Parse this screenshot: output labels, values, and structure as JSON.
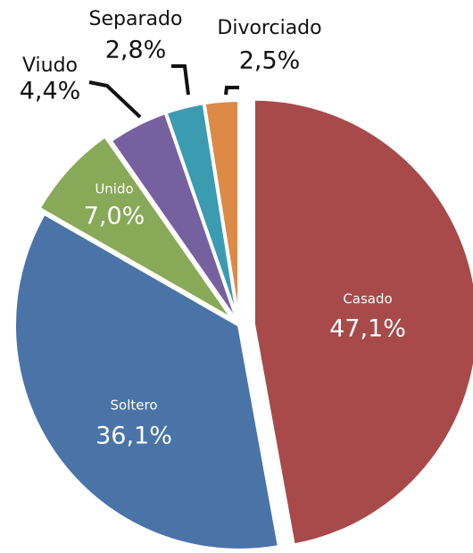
{
  "chart_data": {
    "type": "pie",
    "categories": [
      "Casado",
      "Soltero",
      "Unido",
      "Viudo",
      "Separado",
      "Divorciado"
    ],
    "values": [
      47.1,
      36.1,
      7.0,
      4.4,
      2.8,
      2.5
    ],
    "value_labels": [
      "47,1%",
      "36,1%",
      "7,0%",
      "4,4%",
      "2,8%",
      "2,5%"
    ],
    "colors": [
      "#a84a4a",
      "#4a74a8",
      "#88a958",
      "#7561a0",
      "#3b9bb1",
      "#dc8a46"
    ]
  }
}
